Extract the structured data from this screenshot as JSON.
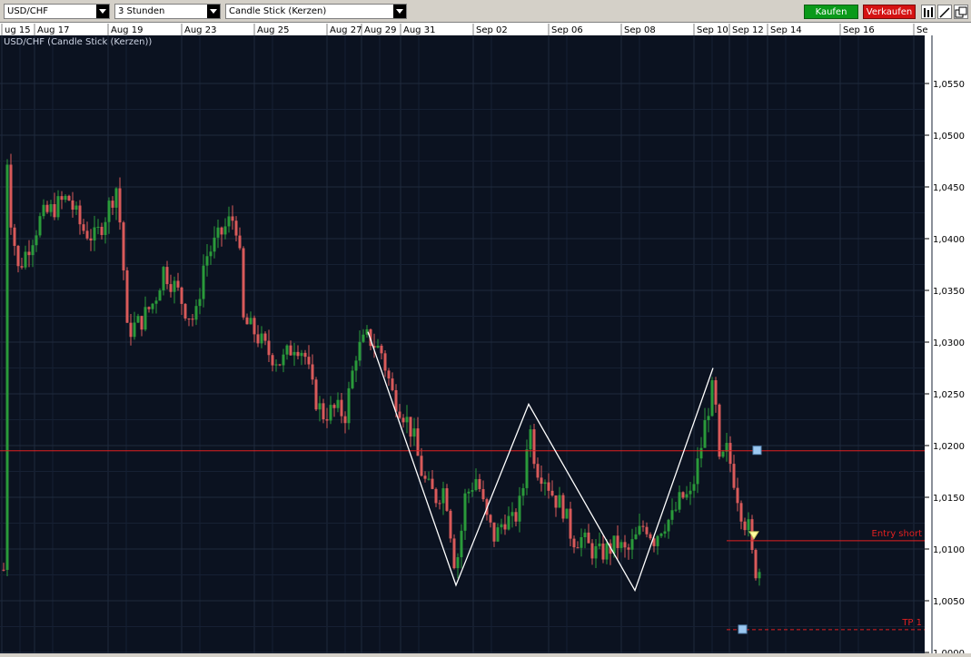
{
  "toolbar": {
    "instrument": "USD/CHF",
    "timeframe": "3 Stunden",
    "chart_type": "Candle Stick (Kerzen)",
    "buy_label": "Kaufen",
    "sell_label": "Verkaufen"
  },
  "chart_data": {
    "type": "candlestick",
    "title": "USD/CHF (Candle Stick (Kerzen))",
    "x_tick_labels": [
      "ug 15",
      "Aug 17",
      "Aug 19",
      "Aug 23",
      "Aug 25",
      "Aug 27",
      "Aug 29",
      "Aug 31",
      "Sep 02",
      "Sep 06",
      "Sep 08",
      "Sep 10",
      "Sep 12",
      "Sep 14",
      "Sep 16",
      "Se"
    ],
    "y_tick_labels": [
      "1,0550",
      "1,0500",
      "1,0450",
      "1,0400",
      "1,0350",
      "1,0300",
      "1,0250",
      "1,0200",
      "1,0150",
      "1,0100",
      "1,0050",
      "1,0000"
    ],
    "ylim": [
      1.0,
      1.058
    ],
    "colors": {
      "up": "#2a9a3a",
      "down": "#d95a5a",
      "background": "#0b1220",
      "grid": "#1f2a3d",
      "annotation": "#e02020",
      "pattern": "#ffffff",
      "marker": "#9cc8f0"
    },
    "pattern_points": [
      {
        "date": "Aug 29",
        "price": 1.031
      },
      {
        "date": "Aug 31",
        "price": 1.0065
      },
      {
        "date": "Sep 02",
        "price": 1.024
      },
      {
        "date": "Sep 08",
        "price": 1.006
      },
      {
        "date": "Sep 10",
        "price": 1.0275
      }
    ],
    "levels": [
      {
        "label": "",
        "price": 1.0195,
        "style": "solid"
      },
      {
        "label": "Entry short",
        "price": 1.0108,
        "style": "solid"
      },
      {
        "label": "TP 1",
        "price": 1.0022,
        "style": "dashed"
      }
    ]
  }
}
